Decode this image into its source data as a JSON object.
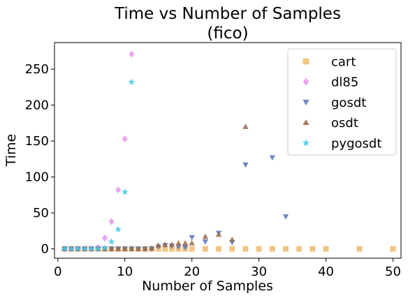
{
  "chart_data": {
    "type": "scatter",
    "title": "Time vs Number of Samples",
    "subtitle": "(fico)",
    "xlabel": "Number of Samples",
    "ylabel": "Time",
    "xlim": [
      -0.5,
      51.2
    ],
    "ylim": [
      -13,
      287
    ],
    "xticks": [
      0,
      10,
      20,
      30,
      40,
      50
    ],
    "yticks": [
      0,
      50,
      100,
      150,
      200,
      250
    ],
    "grid": false,
    "legend_position": "upper-right",
    "series": [
      {
        "name": "cart",
        "marker": "square",
        "color": "#f0bb6e",
        "points": [
          [
            1,
            0
          ],
          [
            2,
            0
          ],
          [
            3,
            0
          ],
          [
            4,
            0
          ],
          [
            5,
            0
          ],
          [
            6,
            0
          ],
          [
            7,
            0
          ],
          [
            8,
            0
          ],
          [
            9,
            0
          ],
          [
            10,
            0
          ],
          [
            11,
            0
          ],
          [
            12,
            0
          ],
          [
            13,
            0
          ],
          [
            14,
            0
          ],
          [
            15,
            0
          ],
          [
            16,
            0
          ],
          [
            17,
            0
          ],
          [
            18,
            0
          ],
          [
            19,
            0
          ],
          [
            20,
            0
          ],
          [
            22,
            0
          ],
          [
            24,
            0
          ],
          [
            26,
            0
          ],
          [
            28,
            0
          ],
          [
            30,
            0
          ],
          [
            32,
            0
          ],
          [
            34,
            0
          ],
          [
            36,
            0
          ],
          [
            38,
            0
          ],
          [
            40,
            0
          ],
          [
            45,
            0
          ],
          [
            50,
            0
          ]
        ]
      },
      {
        "name": "dl85",
        "marker": "diamond",
        "color": "#e496ee",
        "points": [
          [
            1,
            0
          ],
          [
            2,
            0
          ],
          [
            3,
            0
          ],
          [
            4,
            0
          ],
          [
            5,
            0
          ],
          [
            6,
            2
          ],
          [
            7,
            15
          ],
          [
            8,
            38
          ],
          [
            9,
            82
          ],
          [
            10,
            153
          ],
          [
            11,
            271
          ]
        ]
      },
      {
        "name": "gosdt",
        "marker": "triangle-down",
        "color": "#5b78b6",
        "points": [
          [
            1,
            0
          ],
          [
            2,
            0
          ],
          [
            3,
            0
          ],
          [
            4,
            0
          ],
          [
            5,
            0
          ],
          [
            6,
            0
          ],
          [
            7,
            0
          ],
          [
            8,
            0
          ],
          [
            9,
            0
          ],
          [
            10,
            0
          ],
          [
            11,
            0
          ],
          [
            12,
            0
          ],
          [
            13,
            0
          ],
          [
            14,
            0
          ],
          [
            15,
            3
          ],
          [
            16,
            5
          ],
          [
            17,
            4
          ],
          [
            18,
            3
          ],
          [
            19,
            2
          ],
          [
            20,
            16
          ],
          [
            22,
            10
          ],
          [
            24,
            22
          ],
          [
            26,
            9
          ],
          [
            28,
            117
          ],
          [
            32,
            127
          ],
          [
            34,
            45
          ]
        ]
      },
      {
        "name": "osdt",
        "marker": "triangle-up",
        "color": "#9b6b4e",
        "points": [
          [
            1,
            0
          ],
          [
            2,
            0
          ],
          [
            3,
            0
          ],
          [
            4,
            0
          ],
          [
            5,
            0
          ],
          [
            6,
            0
          ],
          [
            7,
            0
          ],
          [
            8,
            0
          ],
          [
            9,
            0
          ],
          [
            10,
            0
          ],
          [
            11,
            0
          ],
          [
            12,
            0
          ],
          [
            13,
            0
          ],
          [
            14,
            1
          ],
          [
            15,
            5
          ],
          [
            16,
            6
          ],
          [
            17,
            6
          ],
          [
            18,
            8
          ],
          [
            19,
            8
          ],
          [
            20,
            8
          ],
          [
            22,
            17
          ],
          [
            24,
            20
          ],
          [
            26,
            13
          ],
          [
            28,
            170
          ]
        ]
      },
      {
        "name": "pygosdt",
        "marker": "star",
        "color": "#45c9e8",
        "points": [
          [
            1,
            0
          ],
          [
            2,
            0
          ],
          [
            3,
            0
          ],
          [
            4,
            0
          ],
          [
            5,
            0
          ],
          [
            6,
            0
          ],
          [
            7,
            1
          ],
          [
            8,
            10
          ],
          [
            9,
            27
          ],
          [
            10,
            79
          ],
          [
            11,
            232
          ]
        ]
      }
    ]
  }
}
